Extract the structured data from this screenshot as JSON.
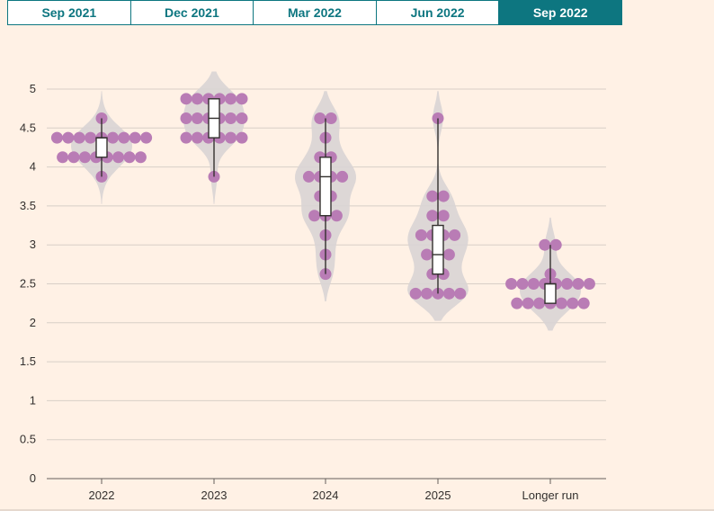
{
  "tabs": [
    {
      "label": "Sep 2021",
      "active": false
    },
    {
      "label": "Dec 2021",
      "active": false
    },
    {
      "label": "Mar 2022",
      "active": false
    },
    {
      "label": "Jun 2022",
      "active": false
    },
    {
      "label": "Sep 2022",
      "active": true
    }
  ],
  "colors": {
    "background": "#fff1e5",
    "tab_accent": "#0d7680",
    "dots": "#b97cb5",
    "violin": "#d9d4d4",
    "gridline": "#d8cfc7",
    "box_fill": "#ffffff",
    "box_stroke": "#33302e"
  },
  "chart_data": {
    "type": "scatter",
    "subtype": "dot-plot with violin and box-and-whisker overlays",
    "title": "",
    "xlabel": "",
    "ylabel": "",
    "ylim": [
      0,
      5.25
    ],
    "y_ticks": [
      0,
      0.5,
      1,
      1.5,
      2,
      2.5,
      3,
      3.5,
      4,
      4.5,
      5
    ],
    "y_tick_labels": [
      "0",
      "0.5",
      "1",
      "1.5",
      "2",
      "2.5",
      "3",
      "3.5",
      "4",
      "4.5",
      "5"
    ],
    "grid": true,
    "categories": [
      "2022",
      "2023",
      "2024",
      "2025",
      "Longer run"
    ],
    "series": [
      {
        "category": "2022",
        "dots": [
          {
            "y": 4.625,
            "count": 1
          },
          {
            "y": 4.375,
            "count": 9
          },
          {
            "y": 4.125,
            "count": 8
          },
          {
            "y": 3.875,
            "count": 1
          }
        ],
        "box": {
          "min": 3.875,
          "q1": 4.125,
          "median": 4.375,
          "q3": 4.375,
          "max": 4.625
        }
      },
      {
        "category": "2023",
        "dots": [
          {
            "y": 4.875,
            "count": 6
          },
          {
            "y": 4.625,
            "count": 6
          },
          {
            "y": 4.375,
            "count": 6
          },
          {
            "y": 3.875,
            "count": 1
          }
        ],
        "box": {
          "min": 3.875,
          "q1": 4.375,
          "median": 4.625,
          "q3": 4.875,
          "max": 4.875
        }
      },
      {
        "category": "2024",
        "dots": [
          {
            "y": 4.625,
            "count": 2
          },
          {
            "y": 4.375,
            "count": 1
          },
          {
            "y": 4.125,
            "count": 2
          },
          {
            "y": 3.875,
            "count": 4
          },
          {
            "y": 3.625,
            "count": 2
          },
          {
            "y": 3.375,
            "count": 3
          },
          {
            "y": 3.125,
            "count": 1
          },
          {
            "y": 2.875,
            "count": 1
          },
          {
            "y": 2.625,
            "count": 1
          }
        ],
        "box": {
          "min": 2.625,
          "q1": 3.375,
          "median": 3.875,
          "q3": 4.125,
          "max": 4.625
        }
      },
      {
        "category": "2025",
        "dots": [
          {
            "y": 4.625,
            "count": 1
          },
          {
            "y": 3.625,
            "count": 2
          },
          {
            "y": 3.375,
            "count": 2
          },
          {
            "y": 3.125,
            "count": 4
          },
          {
            "y": 2.875,
            "count": 3
          },
          {
            "y": 2.625,
            "count": 2
          },
          {
            "y": 2.375,
            "count": 5
          }
        ],
        "box": {
          "min": 2.375,
          "q1": 2.625,
          "median": 2.875,
          "q3": 3.25,
          "max": 4.625
        }
      },
      {
        "category": "Longer run",
        "dots": [
          {
            "y": 3.0,
            "count": 2
          },
          {
            "y": 2.625,
            "count": 1
          },
          {
            "y": 2.5,
            "count": 8
          },
          {
            "y": 2.25,
            "count": 7
          }
        ],
        "box": {
          "min": 2.25,
          "q1": 2.25,
          "median": 2.5,
          "q3": 2.5,
          "max": 3.0
        }
      }
    ]
  }
}
